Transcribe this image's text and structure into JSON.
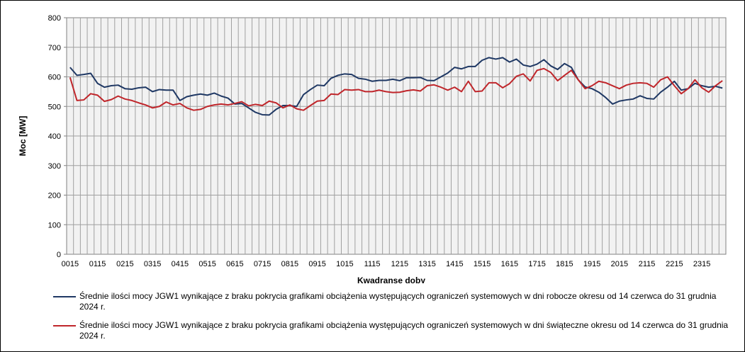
{
  "chart_data": {
    "type": "line",
    "xlabel": "Kwadranse doby",
    "ylabel": "Moc [MW]",
    "ylim": [
      0,
      800
    ],
    "yticks": [
      0,
      100,
      200,
      300,
      400,
      500,
      600,
      700,
      800
    ],
    "grid": true,
    "legend_position": "bottom",
    "x_tick_labels": [
      "0015",
      "0115",
      "0215",
      "0315",
      "0415",
      "0515",
      "0615",
      "0715",
      "0815",
      "0915",
      "1015",
      "1115",
      "1215",
      "1315",
      "1415",
      "1515",
      "1615",
      "1715",
      "1815",
      "1915",
      "2015",
      "2115",
      "2215",
      "2315"
    ],
    "colors": {
      "workdays": "#1f3864",
      "holidays": "#c0262b",
      "grid": "#a0a0a0",
      "plot_bg": "#f2f2f2"
    },
    "series": [
      {
        "name": "Średnie ilości mocy JGW1 wynikające z braku pokrycia grafikami obciążenia występujących ograniczeń systemowych w dni robocze okresu od 14 czerwca do 31 grudnia 2024 r.",
        "values": [
          632,
          605,
          608,
          612,
          578,
          565,
          570,
          572,
          560,
          558,
          563,
          565,
          550,
          557,
          555,
          555,
          520,
          533,
          538,
          542,
          538,
          545,
          535,
          528,
          508,
          510,
          495,
          480,
          472,
          471,
          490,
          503,
          503,
          500,
          540,
          557,
          572,
          570,
          595,
          605,
          610,
          608,
          595,
          592,
          585,
          588,
          588,
          592,
          587,
          597,
          597,
          598,
          588,
          587,
          600,
          613,
          632,
          627,
          635,
          635,
          656,
          665,
          660,
          665,
          650,
          660,
          640,
          635,
          643,
          658,
          637,
          625,
          645,
          632,
          590,
          566,
          560,
          548,
          530,
          508,
          518,
          522,
          525,
          536,
          527,
          525,
          548,
          565,
          585,
          555,
          560,
          578,
          570,
          565,
          568,
          562
        ]
      },
      {
        "name": "Średnie ilości mocy JGW1 wynikające z braku pokrycia grafikami obciążenia występujących ograniczeń systemowych w dni świąteczne okresu od 14 czerwca do 31 grudnia 2024 r.",
        "values": [
          598,
          520,
          522,
          543,
          538,
          517,
          523,
          535,
          525,
          520,
          512,
          505,
          495,
          500,
          515,
          505,
          510,
          495,
          487,
          490,
          500,
          505,
          508,
          505,
          510,
          516,
          502,
          507,
          503,
          518,
          512,
          495,
          505,
          492,
          487,
          503,
          518,
          520,
          542,
          540,
          557,
          555,
          557,
          550,
          550,
          555,
          550,
          547,
          548,
          553,
          556,
          552,
          570,
          573,
          565,
          555,
          565,
          550,
          585,
          550,
          552,
          580,
          580,
          563,
          577,
          602,
          610,
          586,
          622,
          628,
          615,
          587,
          605,
          622,
          590,
          560,
          570,
          585,
          580,
          570,
          560,
          572,
          578,
          580,
          578,
          565,
          590,
          600,
          570,
          543,
          560,
          590,
          563,
          548,
          570,
          587
        ]
      }
    ]
  }
}
